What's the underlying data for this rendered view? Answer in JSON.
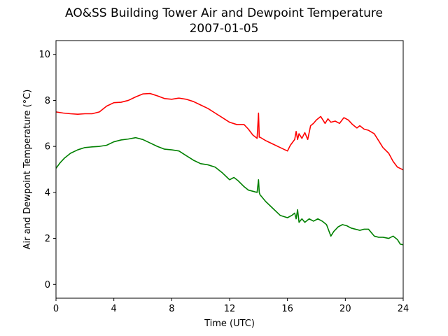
{
  "chart_data": {
    "type": "line",
    "title": "AO&SS Building Tower Air and Dewpoint Temperature",
    "subtitle": "2007-01-05",
    "xlabel": "Time (UTC)",
    "ylabel": "Air and Dewpoint Temperature (°C)",
    "xlim": [
      0,
      24
    ],
    "ylim": [
      -0.6,
      10.6
    ],
    "xticks": [
      0,
      4,
      8,
      12,
      16,
      20,
      24
    ],
    "yticks": [
      0,
      2,
      4,
      6,
      8,
      10
    ],
    "grid": false,
    "series": [
      {
        "color": "#ff0000",
        "x": [
          0,
          0.5,
          1,
          1.5,
          2,
          2.5,
          3,
          3.5,
          4,
          4.5,
          5,
          5.5,
          6,
          6.5,
          7,
          7.5,
          8,
          8.5,
          9,
          9.5,
          10,
          10.5,
          11,
          11.5,
          12,
          12.5,
          13,
          13.3,
          13.6,
          13.9,
          14.0,
          14.05,
          14.1,
          14.5,
          15,
          15.5,
          16.0,
          16.2,
          16.5,
          16.6,
          16.7,
          16.8,
          17.0,
          17.2,
          17.4,
          17.6,
          17.8,
          18.0,
          18.3,
          18.6,
          18.8,
          19.0,
          19.3,
          19.6,
          19.9,
          20.2,
          20.5,
          20.8,
          21.0,
          21.3,
          21.6,
          22.0,
          22.3,
          22.6,
          23.0,
          23.3,
          23.6,
          24
        ],
        "values": [
          7.5,
          7.45,
          7.42,
          7.4,
          7.42,
          7.42,
          7.5,
          7.75,
          7.9,
          7.92,
          8.0,
          8.15,
          8.28,
          8.3,
          8.2,
          8.08,
          8.05,
          8.1,
          8.05,
          7.95,
          7.8,
          7.65,
          7.45,
          7.25,
          7.05,
          6.95,
          6.95,
          6.75,
          6.5,
          6.35,
          7.45,
          6.4,
          6.4,
          6.25,
          6.1,
          5.95,
          5.8,
          6.05,
          6.3,
          6.65,
          6.3,
          6.55,
          6.35,
          6.6,
          6.3,
          6.9,
          7.0,
          7.15,
          7.3,
          7.0,
          7.2,
          7.05,
          7.1,
          7.0,
          7.25,
          7.15,
          6.95,
          6.8,
          6.9,
          6.75,
          6.7,
          6.55,
          6.25,
          5.95,
          5.7,
          5.35,
          5.1,
          4.98
        ]
      },
      {
        "color": "#008000",
        "x": [
          0,
          0.3,
          0.6,
          1,
          1.5,
          2,
          2.5,
          3,
          3.5,
          4,
          4.5,
          5,
          5.5,
          6,
          6.5,
          7,
          7.5,
          8,
          8.5,
          9,
          9.5,
          10,
          10.5,
          11,
          11.5,
          12,
          12.3,
          12.6,
          13,
          13.3,
          13.6,
          13.9,
          14.0,
          14.05,
          14.1,
          14.5,
          15,
          15.5,
          16.0,
          16.3,
          16.5,
          16.6,
          16.7,
          16.8,
          17.0,
          17.2,
          17.5,
          17.8,
          18.1,
          18.4,
          18.7,
          19.0,
          19.2,
          19.5,
          19.8,
          20.1,
          20.4,
          20.7,
          21.0,
          21.3,
          21.6,
          22.0,
          22.3,
          22.6,
          23.0,
          23.3,
          23.6,
          23.8,
          24
        ],
        "values": [
          5.05,
          5.3,
          5.5,
          5.7,
          5.85,
          5.95,
          5.98,
          6.0,
          6.05,
          6.2,
          6.28,
          6.32,
          6.38,
          6.3,
          6.15,
          6.0,
          5.88,
          5.85,
          5.8,
          5.6,
          5.4,
          5.25,
          5.2,
          5.1,
          4.85,
          4.55,
          4.65,
          4.5,
          4.25,
          4.1,
          4.05,
          4.0,
          4.55,
          4.0,
          3.9,
          3.6,
          3.3,
          3.0,
          2.9,
          3.0,
          3.1,
          2.85,
          3.25,
          2.7,
          2.85,
          2.7,
          2.85,
          2.75,
          2.85,
          2.75,
          2.6,
          2.1,
          2.3,
          2.5,
          2.6,
          2.55,
          2.45,
          2.4,
          2.35,
          2.4,
          2.4,
          2.1,
          2.05,
          2.05,
          2.0,
          2.1,
          1.95,
          1.75,
          1.72
        ]
      }
    ]
  }
}
